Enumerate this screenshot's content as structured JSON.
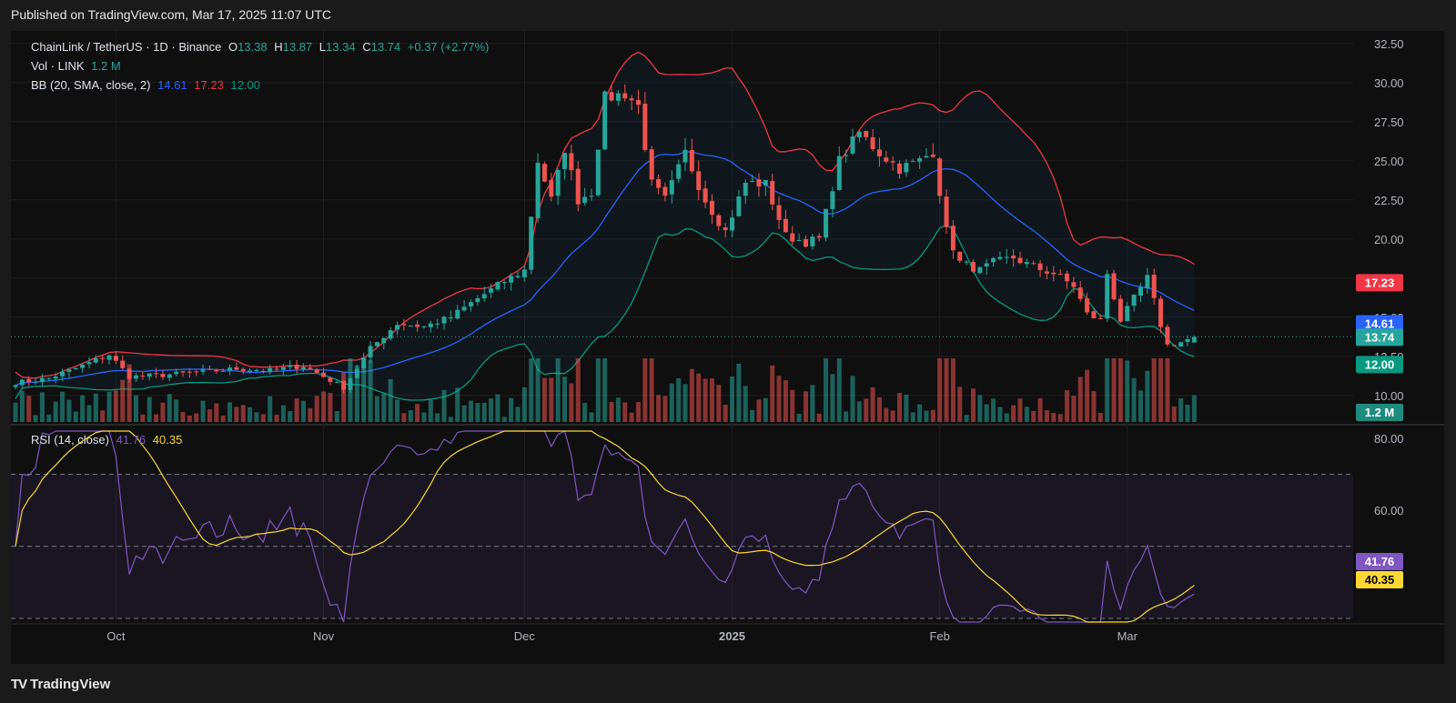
{
  "header": {
    "published": "Published on TradingView.com, Mar 17, 2025 11:07 UTC"
  },
  "footer": {
    "brand": "TradingView",
    "logo": "TV"
  },
  "legend": {
    "symbol": "ChainLink / TetherUS · 1D · Binance",
    "o_label": "O",
    "o": "13.38",
    "h_label": "H",
    "h": "13.87",
    "l_label": "L",
    "l": "13.34",
    "c_label": "C",
    "c": "13.74",
    "change": "+0.37 (+2.77%)",
    "vol_label": "Vol · LINK",
    "vol": "1.2 M",
    "bb_label": "BB (20, SMA, close, 2)",
    "bb_mid": "14.61",
    "bb_up": "17.23",
    "bb_low": "12.00",
    "rsi_label": "RSI (14, close)",
    "rsi": "41.76",
    "rsi_ma": "40.35"
  },
  "colors": {
    "up": "#26a69a",
    "down": "#ef5350",
    "bb_mid": "#2962ff",
    "bb_up": "#f23645",
    "bb_low": "#089981",
    "rsi": "#7e57c2",
    "rsi_ma": "#fdd835",
    "bg": "#0f0f0f"
  },
  "chart_data": [
    {
      "type": "candlestick",
      "title": "ChainLink / TetherUS · 1D · Binance",
      "y_ticks": [
        "32.50",
        "30.00",
        "27.50",
        "25.00",
        "22.50",
        "20.00",
        "17.50",
        "15.00",
        "12.50",
        "10.00"
      ],
      "ylim": [
        8.3,
        33.3
      ],
      "x_ticks": [
        {
          "label": "Oct",
          "day": 15
        },
        {
          "label": "Nov",
          "day": 46
        },
        {
          "label": "Dec",
          "day": 76
        },
        {
          "label": "2025",
          "day": 107
        },
        {
          "label": "Feb",
          "day": 138
        },
        {
          "label": "Mar",
          "day": 166
        }
      ],
      "anchor_closes": [
        [
          0,
          10.8
        ],
        [
          5,
          11.1
        ],
        [
          10,
          11.9
        ],
        [
          14,
          12.6
        ],
        [
          17,
          11.2
        ],
        [
          22,
          11.3
        ],
        [
          28,
          11.5
        ],
        [
          33,
          11.7
        ],
        [
          38,
          11.6
        ],
        [
          43,
          11.9
        ],
        [
          46,
          11.2
        ],
        [
          49,
          10.5
        ],
        [
          53,
          13.0
        ],
        [
          57,
          14.6
        ],
        [
          61,
          14.4
        ],
        [
          65,
          15.0
        ],
        [
          69,
          16.2
        ],
        [
          73,
          17.3
        ],
        [
          76,
          18.0
        ],
        [
          78,
          25.0
        ],
        [
          80,
          22.5
        ],
        [
          82,
          25.8
        ],
        [
          84,
          22.5
        ],
        [
          86,
          23.0
        ],
        [
          88,
          29.0
        ],
        [
          91,
          29.3
        ],
        [
          93,
          28.5
        ],
        [
          95,
          23.5
        ],
        [
          97,
          22.5
        ],
        [
          100,
          25.5
        ],
        [
          103,
          22.5
        ],
        [
          106,
          20.5
        ],
        [
          109,
          23.6
        ],
        [
          112,
          23.5
        ],
        [
          115,
          20.2
        ],
        [
          118,
          19.8
        ],
        [
          120,
          20.0
        ],
        [
          123,
          25.0
        ],
        [
          126,
          26.8
        ],
        [
          129,
          25.5
        ],
        [
          132,
          24.5
        ],
        [
          135,
          25.0
        ],
        [
          137,
          25.6
        ],
        [
          139,
          20.5
        ],
        [
          141,
          18.5
        ],
        [
          144,
          18.0
        ],
        [
          146,
          18.5
        ],
        [
          149,
          18.8
        ],
        [
          152,
          18.2
        ],
        [
          155,
          17.8
        ],
        [
          158,
          17.0
        ],
        [
          160,
          15.2
        ],
        [
          162,
          14.8
        ],
        [
          163,
          17.8
        ],
        [
          165,
          14.8
        ],
        [
          167,
          16.2
        ],
        [
          169,
          17.5
        ],
        [
          171,
          14.5
        ],
        [
          172,
          13.2
        ],
        [
          174,
          13.4
        ],
        [
          176,
          13.74
        ]
      ],
      "price_labels": [
        {
          "value": 17.23,
          "text": "17.23",
          "color_key": "bb_up"
        },
        {
          "value": 14.61,
          "text": "14.61",
          "color_key": "bb_mid"
        },
        {
          "value": 13.74,
          "text": "13.74",
          "color_key": "up"
        },
        {
          "value": 12.0,
          "text": "12.00",
          "color_key": "bb_low"
        }
      ],
      "volume_label": "1.2 M",
      "rsi": {
        "y_ticks": [
          "80.00",
          "60.00"
        ],
        "ylim": [
          29,
          82
        ],
        "upper": 70,
        "middle": 50,
        "lower": 30,
        "value_labels": [
          {
            "text": "41.76",
            "color_key": "rsi"
          },
          {
            "text": "40.35",
            "color_key": "rsi_ma"
          }
        ]
      }
    }
  ]
}
